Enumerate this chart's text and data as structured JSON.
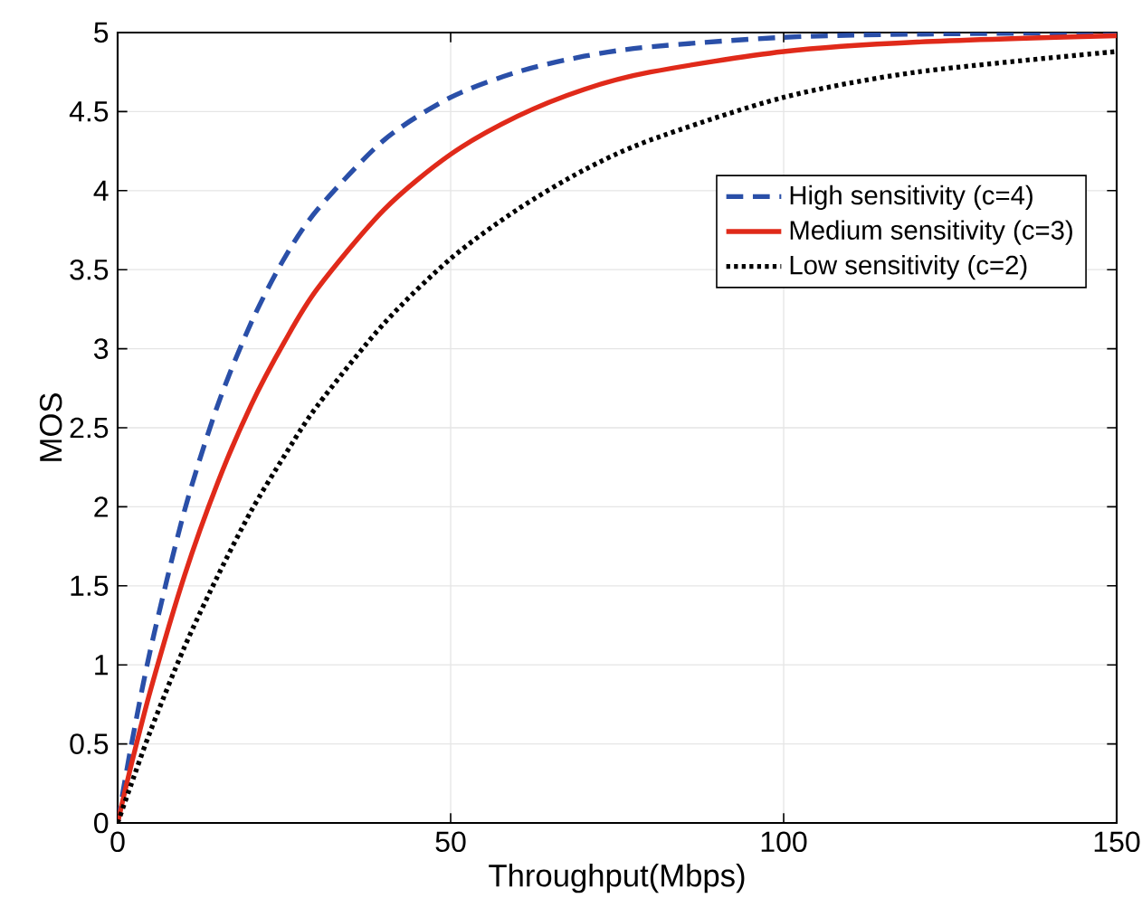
{
  "chart_data": {
    "type": "line",
    "xlabel": "Throughput(Mbps)",
    "ylabel": "MOS",
    "x": [
      0,
      2,
      5,
      10,
      15,
      20,
      25,
      30,
      40,
      50,
      60,
      70,
      80,
      100,
      120,
      150
    ],
    "series": [
      {
        "name": "High sensitivity (c=4)",
        "color": "#2a4fa8",
        "line_style": "dashed",
        "values": [
          0,
          0.48,
          1.11,
          1.97,
          2.64,
          3.16,
          3.57,
          3.88,
          4.32,
          4.59,
          4.75,
          4.85,
          4.91,
          4.97,
          4.99,
          5.0
        ]
      },
      {
        "name": "Medium sensitivity (c=3)",
        "color": "#e02a1a",
        "line_style": "solid",
        "values": [
          0,
          0.36,
          0.85,
          1.56,
          2.15,
          2.64,
          3.04,
          3.38,
          3.88,
          4.23,
          4.47,
          4.64,
          4.75,
          4.88,
          4.94,
          4.98
        ]
      },
      {
        "name": "Low sensitivity (c=2)",
        "color": "#000000",
        "line_style": "dotted",
        "values": [
          0,
          0.24,
          0.59,
          1.11,
          1.56,
          1.97,
          2.32,
          2.64,
          3.16,
          3.57,
          3.88,
          4.13,
          4.32,
          4.59,
          4.75,
          4.88
        ]
      }
    ],
    "xlim": [
      0,
      150
    ],
    "ylim": [
      0,
      5
    ],
    "xticks": [
      0,
      50,
      100,
      150
    ],
    "yticks": [
      0,
      0.5,
      1,
      1.5,
      2,
      2.5,
      3,
      3.5,
      4,
      4.5,
      5
    ],
    "grid": true,
    "legend": "top right",
    "marker": "none"
  }
}
